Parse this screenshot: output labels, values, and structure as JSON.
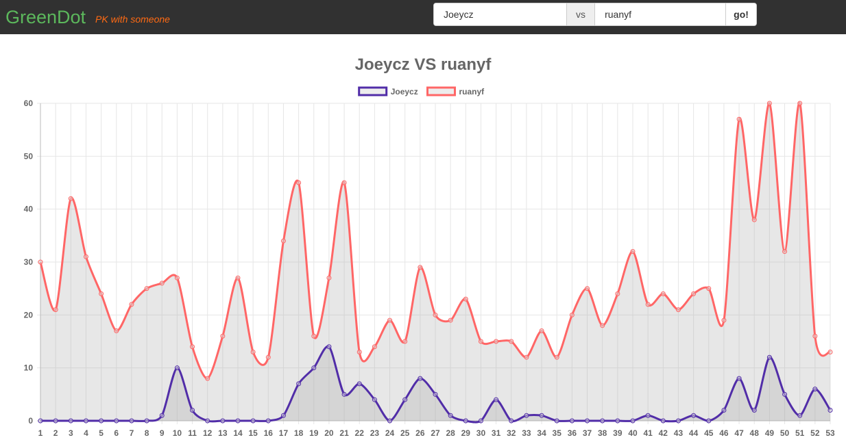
{
  "brand": {
    "name": "GreenDot",
    "tagline": "PK with someone"
  },
  "search": {
    "user1": "Joeycz",
    "separator": "vs",
    "user2": "ruanyf",
    "submit_label": "go!"
  },
  "colors": {
    "brand": "#5cb85c",
    "tagline": "#ff6a13",
    "navbar": "#313131",
    "series1": "#512da8",
    "series2": "#ff6666",
    "fill": "rgba(170,170,170,0.28)"
  },
  "chart_data": {
    "type": "line",
    "title": "Joeycz VS ruanyf",
    "xlabel": "",
    "ylabel": "",
    "ylim": [
      0,
      60
    ],
    "yticks": [
      0,
      10,
      20,
      30,
      40,
      50,
      60
    ],
    "grid": true,
    "legend_position": "top",
    "categories": [
      "1",
      "2",
      "3",
      "4",
      "5",
      "6",
      "7",
      "8",
      "9",
      "10",
      "11",
      "12",
      "13",
      "14",
      "15",
      "16",
      "17",
      "18",
      "19",
      "20",
      "21",
      "22",
      "23",
      "24",
      "25",
      "26",
      "27",
      "28",
      "29",
      "30",
      "31",
      "32",
      "33",
      "34",
      "35",
      "36",
      "37",
      "38",
      "39",
      "40",
      "41",
      "42",
      "43",
      "44",
      "45",
      "46",
      "47",
      "48",
      "49",
      "50",
      "51",
      "52",
      "53"
    ],
    "series": [
      {
        "name": "Joeycz",
        "color": "#512da8",
        "values": [
          0,
          0,
          0,
          0,
          0,
          0,
          0,
          0,
          1,
          10,
          2,
          0,
          0,
          0,
          0,
          0,
          1,
          7,
          10,
          14,
          5,
          7,
          4,
          0,
          4,
          8,
          5,
          1,
          0,
          0,
          4,
          0,
          1,
          1,
          0,
          0,
          0,
          0,
          0,
          0,
          1,
          0,
          0,
          1,
          0,
          2,
          8,
          2,
          12,
          5,
          1,
          6,
          2
        ]
      },
      {
        "name": "ruanyf",
        "color": "#ff6666",
        "values": [
          30,
          21,
          42,
          31,
          24,
          17,
          22,
          25,
          26,
          27,
          14,
          8,
          16,
          27,
          13,
          12,
          34,
          45,
          16,
          27,
          45,
          13,
          14,
          19,
          15,
          29,
          20,
          19,
          23,
          15,
          15,
          15,
          12,
          17,
          12,
          20,
          25,
          18,
          24,
          32,
          22,
          24,
          21,
          24,
          25,
          19,
          57,
          38,
          60,
          32,
          60,
          16,
          13
        ]
      }
    ]
  }
}
